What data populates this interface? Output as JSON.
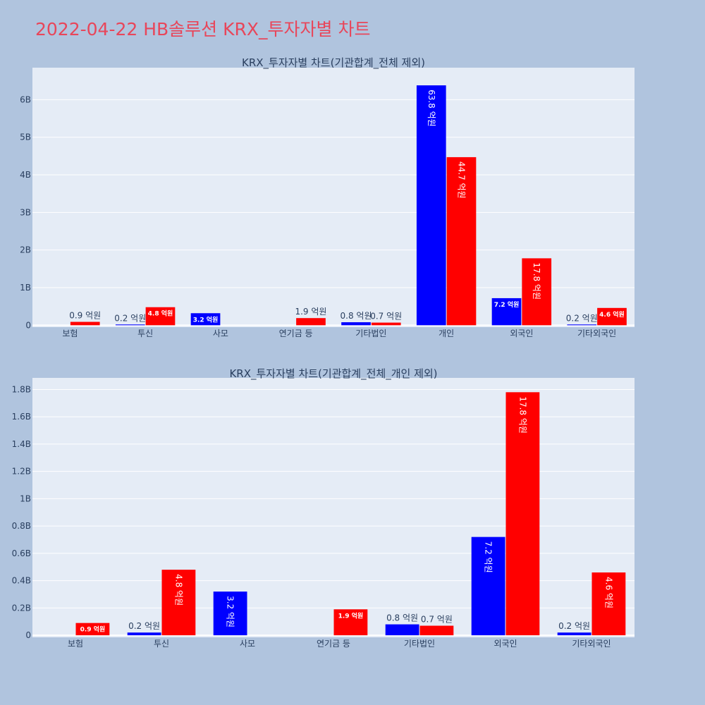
{
  "page_title": "2022-04-22 HB솔루션 KRX_투자자별 차트",
  "colors": {
    "series1": "#0000ff",
    "series2": "#ff0000",
    "plot_bg": "#e5ecf6",
    "page_bg": "#b0c4de",
    "title": "#e8465a"
  },
  "chart_data": [
    {
      "type": "bar",
      "title": "KRX_투자자별 차트(기관합계_전체 제외)",
      "categories": [
        "보험",
        "투신",
        "사모",
        "연기금 등",
        "기타법인",
        "개인",
        "외국인",
        "기타외국인"
      ],
      "series": [
        {
          "values": [
            0,
            20000000,
            320000000,
            0,
            80000000,
            6380000000,
            720000000,
            20000000
          ],
          "labels": [
            "",
            "0.2 억원",
            "3.2 억원",
            "",
            "0.8 억원",
            "63.8 억원",
            "7.2 억원",
            "0.2 억원"
          ]
        },
        {
          "values": [
            90000000,
            480000000,
            0,
            190000000,
            70000000,
            4470000000,
            1780000000,
            460000000
          ],
          "labels": [
            "0.9 억원",
            "4.8 억원",
            "",
            "1.9 억원",
            "0.7 억원",
            "44.7 억원",
            "17.8 억원",
            "4.6 억원"
          ]
        }
      ],
      "yticks": [
        0,
        1000000000,
        2000000000,
        3000000000,
        4000000000,
        5000000000,
        6000000000
      ],
      "ytick_labels": [
        "0",
        "1B",
        "2B",
        "3B",
        "4B",
        "5B",
        "6B"
      ],
      "ylim": [
        -50000000,
        6850000000
      ],
      "grid": true
    },
    {
      "type": "bar",
      "title": "KRX_투자자별 차트(기관합계_전체_개인 제외)",
      "categories": [
        "보험",
        "투신",
        "사모",
        "연기금 등",
        "기타법인",
        "외국인",
        "기타외국인"
      ],
      "series": [
        {
          "values": [
            0,
            20000000,
            320000000,
            0,
            80000000,
            720000000,
            20000000
          ],
          "labels": [
            "",
            "0.2 억원",
            "3.2 억원",
            "",
            "0.8 억원",
            "7.2 억원",
            "0.2 억원"
          ]
        },
        {
          "values": [
            90000000,
            480000000,
            0,
            190000000,
            70000000,
            1780000000,
            460000000
          ],
          "labels": [
            "0.9 억원",
            "4.8 억원",
            "",
            "1.9 억원",
            "0.7 억원",
            "17.8 억원",
            "4.6 억원"
          ]
        }
      ],
      "yticks": [
        0,
        200000000,
        400000000,
        600000000,
        800000000,
        1000000000,
        1200000000,
        1400000000,
        1600000000,
        1800000000
      ],
      "ytick_labels": [
        "0",
        "0.2B",
        "0.4B",
        "0.6B",
        "0.8B",
        "1B",
        "1.2B",
        "1.4B",
        "1.6B",
        "1.8B"
      ],
      "ylim": [
        -15000000,
        1885000000
      ],
      "grid": true
    }
  ]
}
